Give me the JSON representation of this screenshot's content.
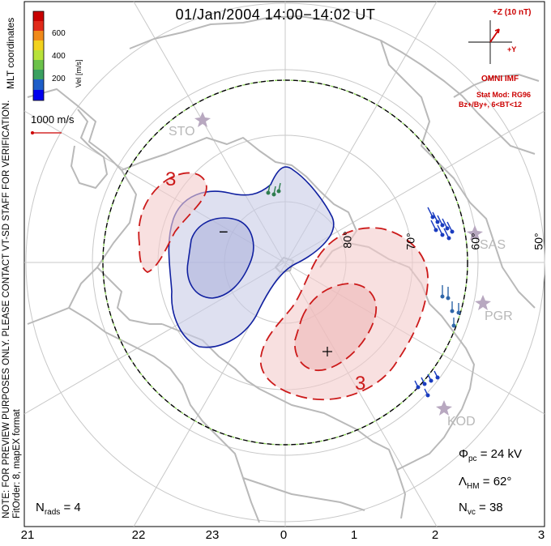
{
  "title": "01/Jan/2004  14:00−14:02  UT",
  "side_note": {
    "line1": "NOTE: FOR PREVIEW PURPOSES ONLY. PLEASE CONTACT VT-SD STAFF FOR VERIFICATION.",
    "line2": "FitOrder: 8, mapEX format"
  },
  "coordinates_label": "MLT coordinates",
  "colorbar": {
    "label": "Vel [m/s]",
    "ticks": [
      "600",
      "400",
      "200"
    ],
    "colors": [
      "#0000ee",
      "#1e5ec8",
      "#3aa060",
      "#6cc24a",
      "#b8e23a",
      "#f2d21e",
      "#f08a1a",
      "#e02a1a",
      "#c80000"
    ]
  },
  "vector_scale": {
    "label": "1000 m/s"
  },
  "imf": {
    "z_label": "+Z (10 nT)",
    "y_label": "+Y",
    "source": "OMNI IMF",
    "model": "Stat Mod: RG96",
    "condition": "Bz+/By+, 6<BT<12"
  },
  "mlt_hours": [
    "21",
    "22",
    "23",
    "0",
    "1",
    "2",
    "3"
  ],
  "latitudes": [
    "80°",
    "70°",
    "60°",
    "50°"
  ],
  "stations": [
    "STO",
    "SAS",
    "PGR",
    "KOD"
  ],
  "contours": {
    "negative_marker": "−",
    "positive_marker": "+",
    "contour_value_left": "3",
    "contour_value_right": "3"
  },
  "stats": {
    "phi_symbol": "Φ",
    "phi_sub": "pc",
    "phi_value": " = 24 kV",
    "lambda_symbol": "Λ",
    "lambda_sub": "HM",
    "lambda_value": " = 62°",
    "nvc_symbol": "N",
    "nvc_sub": "vc",
    "nvc_value": " = 38",
    "nrads_symbol": "N",
    "nrads_sub": "rads",
    "nrads_value": " = 4"
  },
  "colors": {
    "negative_line": "#1020a0",
    "negative_fill": "#c8cbe6",
    "positive_line": "#cc1a1a",
    "positive_fill": "#f4cccc",
    "coastline": "#b9b9b9",
    "grid": "#c8c8c8"
  }
}
